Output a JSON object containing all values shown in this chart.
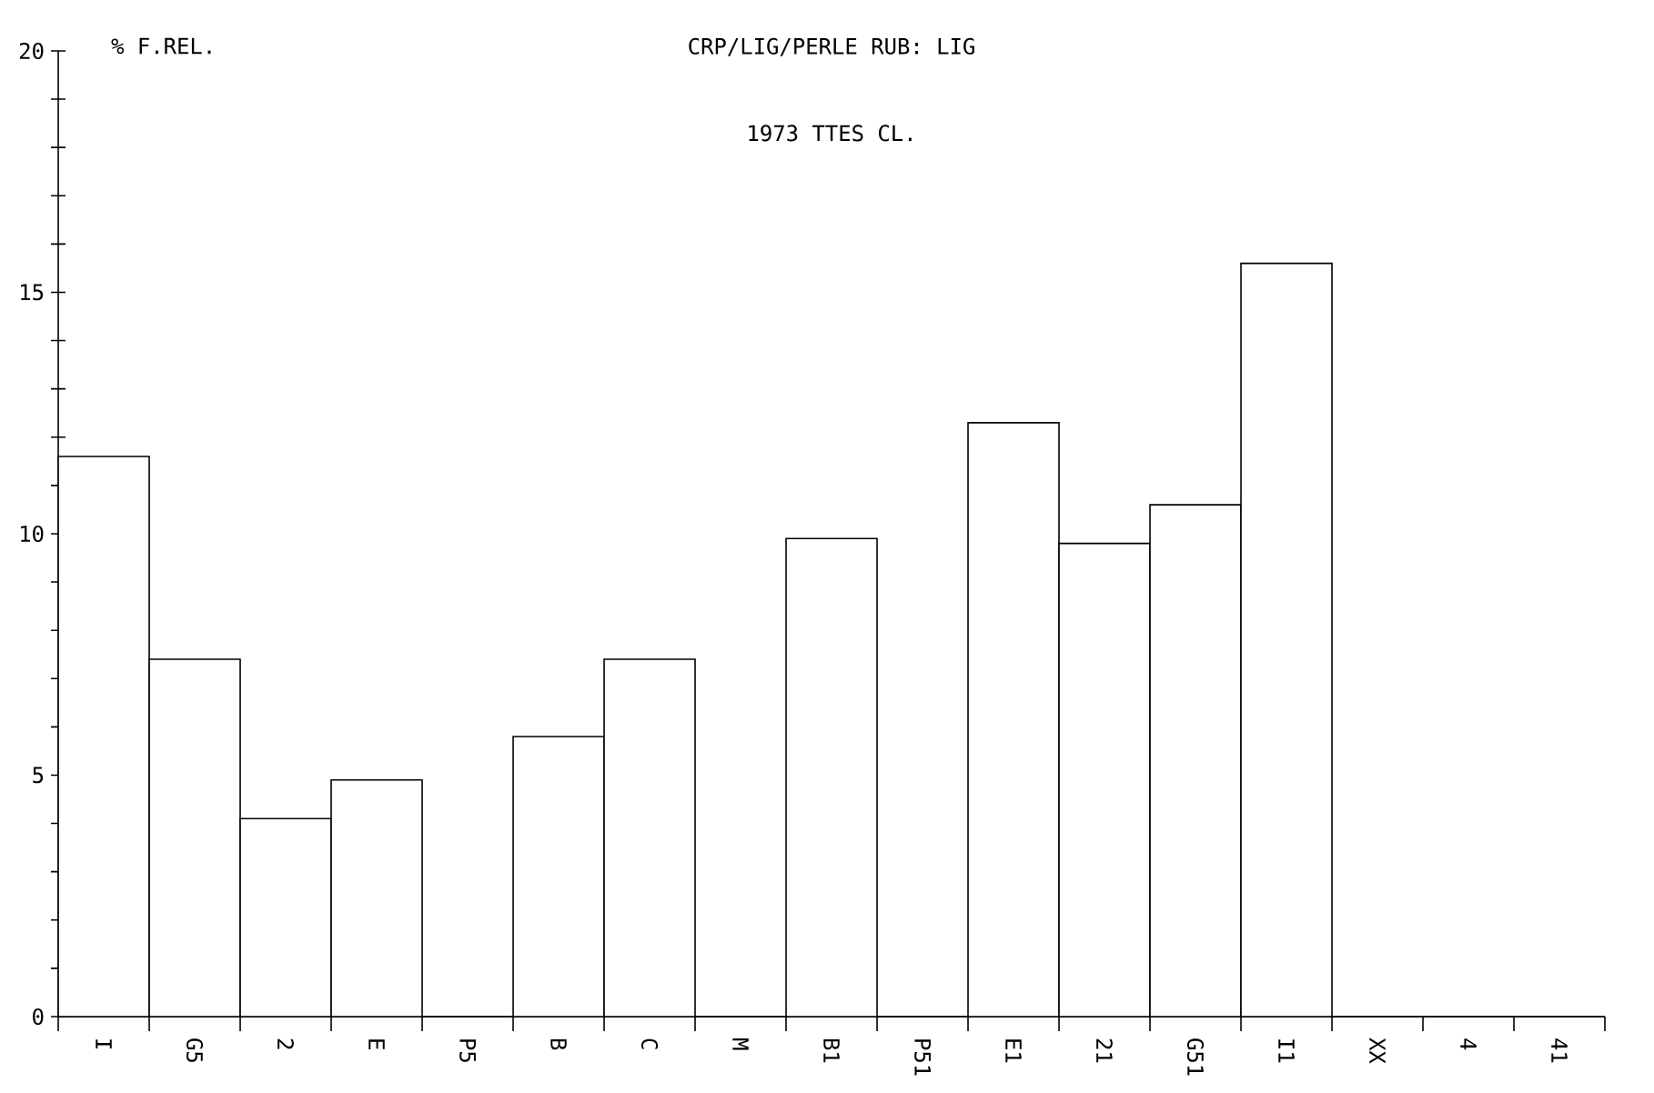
{
  "chart_data": {
    "type": "bar",
    "title": "CRP/LIG/PERLE  RUB: LIG",
    "subtitle": "1973  TTES CL.",
    "ylabel": "% F.REL.",
    "categories": [
      "I",
      "G5",
      "2",
      "E",
      "P5",
      "B",
      "C",
      "M",
      "B1",
      "P51",
      "E1",
      "21",
      "G51",
      "I1",
      "XX",
      "4",
      "41"
    ],
    "values": [
      11.6,
      7.4,
      4.1,
      4.9,
      0,
      5.8,
      7.4,
      0,
      9.9,
      0,
      12.3,
      9.8,
      10.6,
      15.6,
      0,
      0,
      0
    ],
    "color": "#000000",
    "ylim": [
      0,
      20
    ],
    "yticks": [
      0,
      {
        "value": 1,
        "label": null
      },
      {
        "value": 2,
        "label": null
      },
      {
        "value": 3,
        "label": null
      },
      {
        "value": 4,
        "label": null
      },
      5,
      {
        "value": 6,
        "label": null
      },
      {
        "value": 7,
        "label": null
      },
      {
        "value": 8,
        "label": null
      },
      {
        "value": 9,
        "label": null
      },
      10,
      {
        "value": 11,
        "label": null
      },
      {
        "value": 12,
        "label": null
      },
      {
        "value": 13,
        "label": null
      },
      {
        "value": 14,
        "label": null
      },
      15,
      {
        "value": 16,
        "label": null
      },
      {
        "value": 17,
        "label": null
      },
      {
        "value": 18,
        "label": null
      },
      {
        "value": 19,
        "label": null
      },
      20
    ]
  }
}
